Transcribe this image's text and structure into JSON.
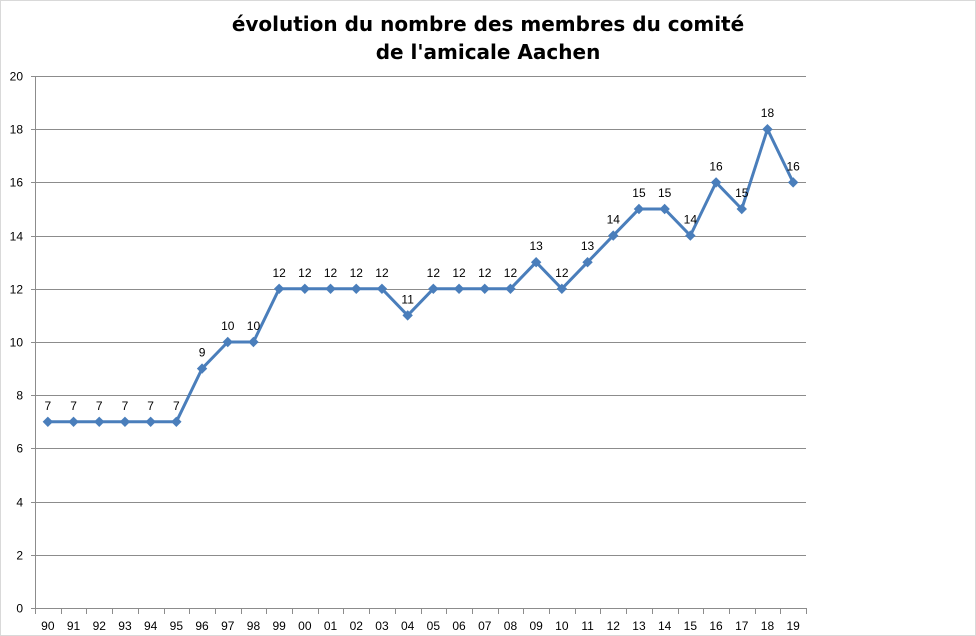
{
  "chart_data": {
    "type": "line",
    "title_lines": [
      "évolution du nombre des membres du comité",
      "de l'amicale Aachen"
    ],
    "xlabel": "",
    "ylabel": "",
    "categories": [
      "90",
      "91",
      "92",
      "93",
      "94",
      "95",
      "96",
      "97",
      "98",
      "99",
      "00",
      "01",
      "02",
      "03",
      "04",
      "05",
      "06",
      "07",
      "08",
      "09",
      "10",
      "11",
      "12",
      "13",
      "14",
      "15",
      "16",
      "17",
      "18",
      "19"
    ],
    "series": [
      {
        "values": [
          7,
          7,
          7,
          7,
          7,
          7,
          9,
          10,
          10,
          12,
          12,
          12,
          12,
          12,
          11,
          12,
          12,
          12,
          12,
          13,
          12,
          13,
          14,
          15,
          15,
          14,
          16,
          15,
          18,
          16
        ],
        "color": "#4a7ebb",
        "marker": "diamond",
        "data_labels": true
      }
    ],
    "ylim": [
      0,
      20
    ],
    "yticks": [
      0,
      2,
      4,
      6,
      8,
      10,
      12,
      14,
      16,
      18,
      20
    ],
    "grid": true,
    "legend": "none"
  }
}
